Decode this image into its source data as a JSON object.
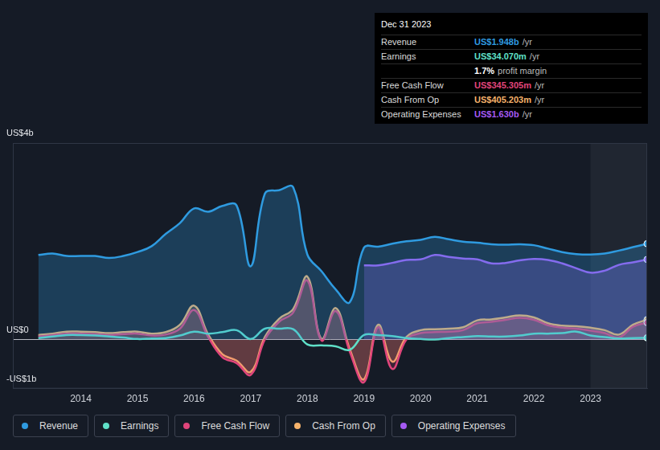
{
  "chart_data": {
    "type": "line",
    "x": [
      2013.25,
      2013.5,
      2013.75,
      2014.0,
      2014.25,
      2014.5,
      2014.75,
      2015.0,
      2015.25,
      2015.5,
      2015.75,
      2016.0,
      2016.25,
      2016.5,
      2016.75,
      2017.0,
      2017.25,
      2017.5,
      2017.75,
      2018.0,
      2018.25,
      2018.5,
      2018.75,
      2019.0,
      2019.25,
      2019.5,
      2019.75,
      2020.0,
      2020.25,
      2020.5,
      2020.75,
      2021.0,
      2021.25,
      2021.5,
      2021.75,
      2022.0,
      2022.25,
      2022.5,
      2022.75,
      2023.0,
      2023.25,
      2023.5,
      2023.75,
      2024.0
    ],
    "series": [
      {
        "name": "Revenue",
        "color": "#2f9be0",
        "values": [
          1.72,
          1.75,
          1.7,
          1.7,
          1.7,
          1.66,
          1.7,
          1.78,
          1.9,
          2.15,
          2.37,
          2.67,
          2.6,
          2.72,
          2.73,
          1.49,
          2.97,
          3.04,
          3.1,
          1.73,
          1.39,
          1.02,
          0.76,
          1.87,
          1.89,
          1.95,
          2.0,
          2.03,
          2.09,
          2.04,
          1.99,
          1.97,
          1.94,
          1.93,
          1.94,
          1.92,
          1.85,
          1.78,
          1.74,
          1.73,
          1.75,
          1.81,
          1.88,
          1.95
        ]
      },
      {
        "name": "Earnings",
        "color": "#5fe0c8",
        "values": [
          0.03,
          0.06,
          0.09,
          0.09,
          0.08,
          0.06,
          0.04,
          0.01,
          0.02,
          0.03,
          0.08,
          0.16,
          0.12,
          0.15,
          0.19,
          0.01,
          0.22,
          0.22,
          0.21,
          -0.1,
          -0.12,
          -0.14,
          -0.21,
          0.09,
          0.09,
          0.07,
          0.03,
          0.01,
          0.0,
          0.03,
          0.05,
          0.07,
          0.06,
          0.06,
          0.08,
          0.12,
          0.12,
          0.13,
          0.16,
          0.08,
          0.05,
          0.02,
          0.03,
          0.034
        ]
      },
      {
        "name": "Free Cash Flow",
        "color": "#e0457b",
        "values": [
          0.06,
          0.09,
          0.12,
          0.12,
          0.11,
          0.09,
          0.11,
          0.12,
          0.08,
          0.1,
          0.22,
          0.6,
          0.05,
          -0.36,
          -0.48,
          -0.72,
          0.0,
          0.36,
          0.55,
          1.2,
          -0.02,
          0.58,
          -0.25,
          -0.87,
          0.25,
          -0.6,
          0.0,
          0.13,
          0.15,
          0.16,
          0.19,
          0.33,
          0.36,
          0.4,
          0.44,
          0.4,
          0.29,
          0.24,
          0.22,
          0.18,
          0.13,
          0.04,
          0.26,
          0.345
        ]
      },
      {
        "name": "Cash From Op",
        "color": "#f5b26b",
        "values": [
          0.09,
          0.12,
          0.16,
          0.16,
          0.15,
          0.13,
          0.15,
          0.16,
          0.12,
          0.15,
          0.3,
          0.69,
          0.1,
          -0.3,
          -0.43,
          -0.66,
          0.05,
          0.42,
          0.62,
          1.28,
          0.01,
          0.64,
          -0.2,
          -0.81,
          0.3,
          -0.45,
          0.05,
          0.19,
          0.21,
          0.22,
          0.25,
          0.39,
          0.41,
          0.45,
          0.49,
          0.45,
          0.33,
          0.28,
          0.27,
          0.24,
          0.19,
          0.1,
          0.3,
          0.405
        ]
      },
      {
        "name": "Operating Expenses",
        "color": "#a55af4",
        "values": [
          null,
          null,
          null,
          null,
          null,
          null,
          null,
          null,
          null,
          null,
          null,
          null,
          null,
          null,
          null,
          null,
          null,
          null,
          null,
          null,
          null,
          null,
          null,
          1.51,
          1.51,
          1.56,
          1.62,
          1.63,
          1.72,
          1.68,
          1.65,
          1.63,
          1.55,
          1.56,
          1.61,
          1.64,
          1.62,
          1.55,
          1.45,
          1.36,
          1.4,
          1.52,
          1.57,
          1.63
        ]
      }
    ],
    "xlim": [
      2012.8,
      2024.0
    ],
    "xticks": [
      2014,
      2015,
      2016,
      2017,
      2018,
      2019,
      2020,
      2021,
      2022,
      2023
    ],
    "ylim": [
      -1,
      4
    ],
    "yticks": [
      {
        "value": -1,
        "label": "-US$1b"
      },
      {
        "value": 0,
        "label": "US$0"
      },
      {
        "value": 4,
        "label": "US$4b"
      }
    ],
    "grid": true,
    "legend": "bottom",
    "highlight": [
      2023,
      2024.0
    ],
    "info_box": {
      "title": "Dec 31 2023",
      "rows": [
        {
          "label": "Revenue",
          "value": "US$1.948b",
          "unit": "/yr"
        },
        {
          "label": "Earnings",
          "value": "US$34.070m",
          "unit": "/yr"
        },
        {
          "value": "1.7%",
          "note": "profit margin"
        },
        {
          "label": "Free Cash Flow",
          "value": "US$345.305m",
          "unit": "/yr"
        },
        {
          "label": "Cash From Op",
          "value": "US$405.203m",
          "unit": "/yr"
        },
        {
          "label": "Operating Expenses",
          "value": "US$1.630b",
          "unit": "/yr"
        }
      ]
    }
  }
}
